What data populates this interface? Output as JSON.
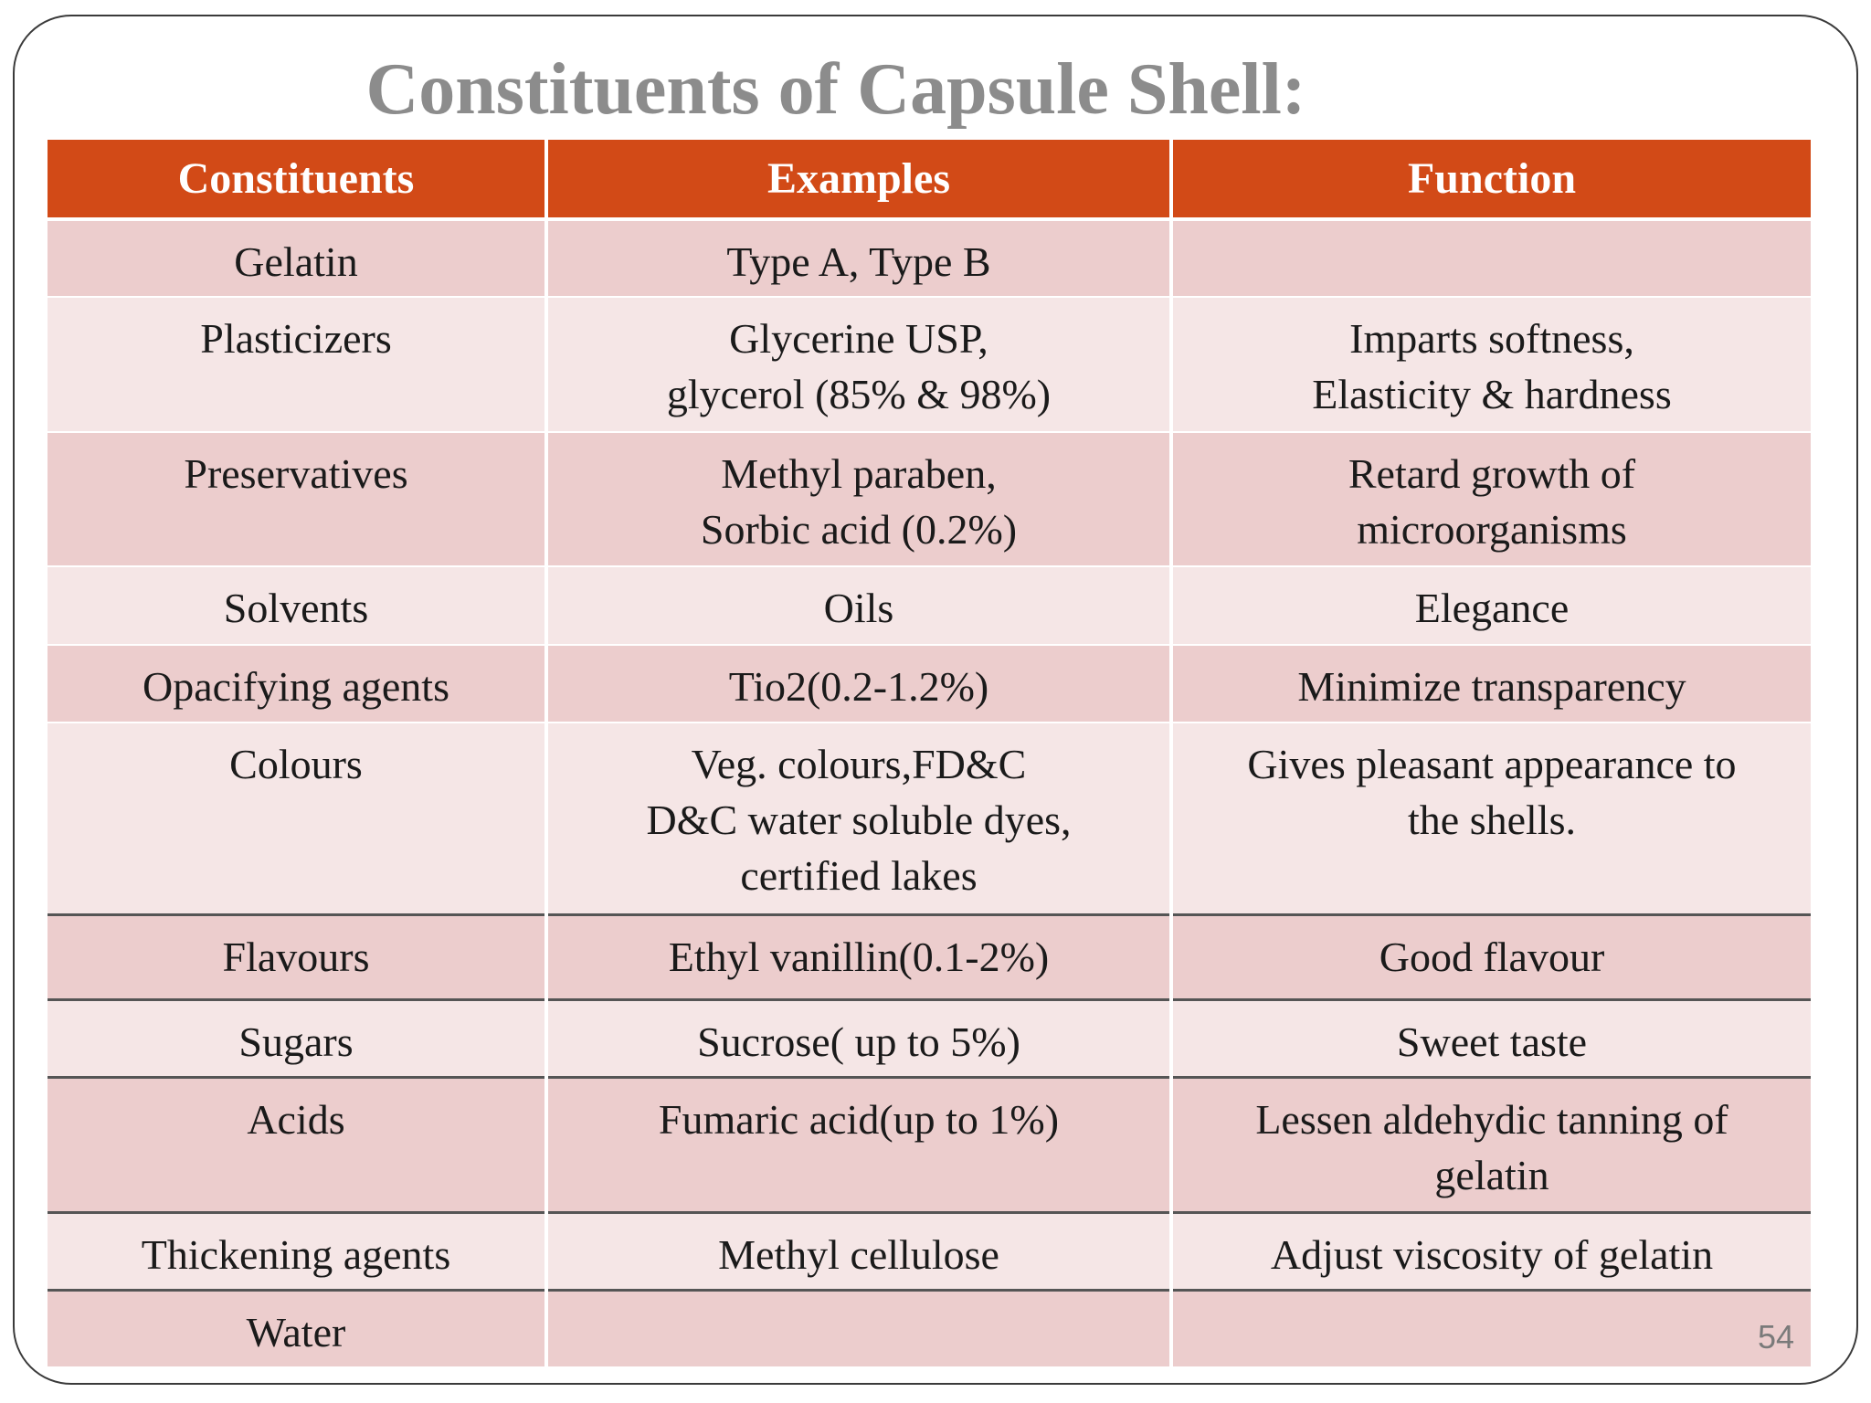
{
  "slide": {
    "title": "Constituents of Capsule Shell:",
    "page_number": "54"
  },
  "table": {
    "headers": [
      "Constituents",
      "Examples",
      "Function"
    ],
    "rows": [
      {
        "constituent": [
          "Gelatin"
        ],
        "examples": [
          "Type A, Type B"
        ],
        "function": []
      },
      {
        "constituent": [
          "Plasticizers"
        ],
        "examples": [
          "Glycerine USP,",
          "glycerol (85% & 98%)"
        ],
        "function": [
          "Imparts softness,",
          "Elasticity & hardness"
        ]
      },
      {
        "constituent": [
          "Preservatives"
        ],
        "examples": [
          "Methyl paraben,",
          "Sorbic acid (0.2%)"
        ],
        "function": [
          "Retard growth of",
          "microorganisms"
        ]
      },
      {
        "constituent": [
          "Solvents"
        ],
        "examples": [
          "Oils"
        ],
        "function": [
          "Elegance"
        ]
      },
      {
        "constituent": [
          "Opacifying agents"
        ],
        "examples": [
          "Tio2(0.2-1.2%)"
        ],
        "function": [
          "Minimize transparency"
        ]
      },
      {
        "constituent": [
          "Colours"
        ],
        "examples": [
          "Veg. colours,FD&C",
          "D&C water soluble dyes,",
          "certified lakes"
        ],
        "function": [
          "Gives pleasant appearance to",
          "the shells."
        ]
      },
      {
        "constituent": [
          "Flavours"
        ],
        "examples": [
          "Ethyl vanillin(0.1-2%)"
        ],
        "function": [
          "Good flavour"
        ]
      },
      {
        "constituent": [
          "Sugars"
        ],
        "examples": [
          "Sucrose( up to 5%)"
        ],
        "function": [
          "Sweet taste"
        ]
      },
      {
        "constituent": [
          "Acids"
        ],
        "examples": [
          "Fumaric acid(up to 1%)"
        ],
        "function": [
          "Lessen aldehydic tanning of",
          "gelatin"
        ]
      },
      {
        "constituent": [
          "Thickening agents"
        ],
        "examples": [
          "Methyl cellulose"
        ],
        "function": [
          "Adjust viscosity of gelatin"
        ]
      },
      {
        "constituent": [
          "Water"
        ],
        "examples": [],
        "function": []
      }
    ]
  },
  "colors": {
    "header_bg": "#d24a17",
    "row_dark": "#eccdcd",
    "row_light": "#f5e6e6",
    "title": "#8c8c8c"
  }
}
